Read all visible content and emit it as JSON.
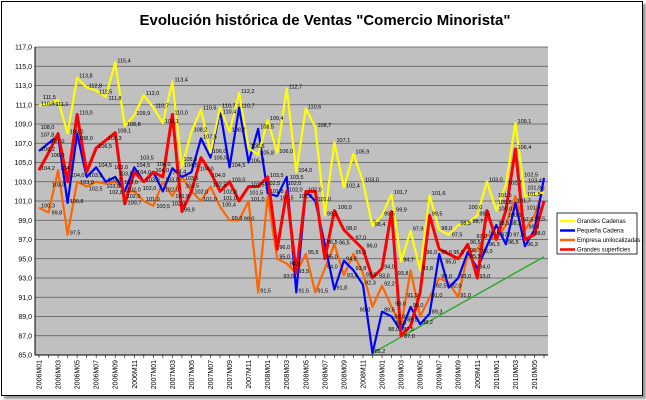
{
  "chart_data": {
    "type": "line",
    "title": "Evolución histórica de Ventas \"Comercio Minorista\"",
    "xlabel": "",
    "ylabel": "",
    "ylim": [
      85,
      117
    ],
    "ytick_step": 2,
    "grid": true,
    "legend_position": "right",
    "x": [
      "2006M01",
      "2006M02",
      "2006M03",
      "2006M04",
      "2006M05",
      "2006M06",
      "2006M07",
      "2006M08",
      "2006M09",
      "2006M10",
      "2006M11",
      "2006M12",
      "2007M01",
      "2007M02",
      "2007M03",
      "2007M04",
      "2007M05",
      "2007M06",
      "2007M07",
      "2007M08",
      "2007M09",
      "2007M10",
      "2007M11",
      "2007M12",
      "2008M01",
      "2008M02",
      "2008M03",
      "2008M04",
      "2008M05",
      "2008M06",
      "2008M07",
      "2008M08",
      "2008M09",
      "2008M10",
      "2008M11",
      "2008M12",
      "2009M01",
      "2009M02",
      "2009M03",
      "2009M04",
      "2009M05",
      "2009M06",
      "2009M07",
      "2009M08",
      "2009M09",
      "2009M10",
      "2009M11",
      "2009M12",
      "2010M01",
      "2010M02",
      "2010M03",
      "2010M04",
      "2010M05",
      "2010M06"
    ],
    "x_tick_labels": [
      "2006M01",
      "2006M03",
      "2006M05",
      "2006M07",
      "2006M09",
      "2006M11",
      "2007M01",
      "2007M03",
      "2007M05",
      "2007M07",
      "2007M09",
      "2007M11",
      "2008M01",
      "2008M03",
      "2008M05",
      "2008M07",
      "2008M09",
      "2008M11",
      "2009M01",
      "2009M03",
      "2009M05",
      "2009M07",
      "2009M09",
      "2009M11",
      "2010M01",
      "2010M03",
      "2010M05"
    ],
    "y_tick_labels": [
      "85,0",
      "87,0",
      "89,0",
      "91,0",
      "93,0",
      "95,0",
      "97,0",
      "99,0",
      "101,0",
      "103,0",
      "105,0",
      "107,0",
      "109,0",
      "111,0",
      "113,0",
      "115,0",
      "117,0"
    ],
    "series": [
      {
        "name": "Grandes Cadenas",
        "color": "#ffff00",
        "values": [
          110.9,
          111.1,
          111.5,
          108.0,
          113.8,
          112.8,
          112.5,
          111.8,
          115.4,
          108.8,
          109.9,
          112.0,
          110.7,
          109.1,
          113.4,
          104.5,
          108.2,
          110.5,
          106.0,
          110.7,
          108.2,
          112.2,
          106.5,
          105.8,
          109.4,
          106.0,
          112.7,
          104.0,
          110.6,
          108.7,
          99.5,
          107.1,
          102.4,
          105.9,
          103.0,
          98.4,
          99.5,
          101.7,
          94.7,
          97.9,
          93.8,
          101.6,
          98.0,
          97.5,
          98.5,
          98.7,
          99.5,
          103.0,
          100.0,
          102.7,
          109.1,
          101.5,
          101.7,
          101.9
        ]
      },
      {
        "name": "Pequeña Cadena",
        "color": "#0000ff",
        "values": [
          106.2,
          107.0,
          107.8,
          100.8,
          108.0,
          103.5,
          104.5,
          103.0,
          103.5,
          102.0,
          104.5,
          103.0,
          104.0,
          102.0,
          104.4,
          103.5,
          104.0,
          107.5,
          105.5,
          110.4,
          104.5,
          110.7,
          105.0,
          108.5,
          101.8,
          101.5,
          103.5,
          91.5,
          102.0,
          101.0,
          96.5,
          91.8,
          94.8,
          93.8,
          92.3,
          85.2,
          89.5,
          89.0,
          87.5,
          90.0,
          88.2,
          89.3,
          95.5,
          92.0,
          93.0,
          95.7,
          94.0,
          96.3,
          98.5,
          96.5,
          100.8,
          96.3,
          98.0,
          103.4
        ]
      },
      {
        "name": "Empresa unilocalizadas",
        "color": "#ff6600",
        "values": [
          100.3,
          99.8,
          104.2,
          97.5,
          103.0,
          102.5,
          103.0,
          102.8,
          103.0,
          102.0,
          102.0,
          101.0,
          100.5,
          103.0,
          101.5,
          103.5,
          102.0,
          101.0,
          102.5,
          100.4,
          99.0,
          99.0,
          101.0,
          91.5,
          101.5,
          95.0,
          94.5,
          93.5,
          95.5,
          91.5,
          94.0,
          96.5,
          93.3,
          95.5,
          93.5,
          90.0,
          92.2,
          90.0,
          88.0,
          93.8,
          89.0,
          91.0,
          93.0,
          92.5,
          91.0,
          95.5,
          96.0,
          97.5,
          97.0,
          98.5,
          101.5,
          98.0,
          99.5,
          102.5
        ]
      },
      {
        "name": "Grandes superficies",
        "color": "#ff0000",
        "values": [
          104.2,
          106.0,
          108.0,
          103.0,
          110.0,
          104.0,
          106.5,
          107.3,
          108.1,
          100.7,
          104.0,
          103.0,
          104.0,
          103.5,
          110.0,
          99.9,
          102.0,
          105.5,
          104.0,
          102.0,
          103.0,
          101.0,
          102.5,
          102.5,
          103.5,
          96.0,
          102.0,
          93.5,
          102.0,
          102.0,
          95.0,
          100.0,
          98.0,
          97.0,
          96.0,
          93.0,
          94.0,
          99.9,
          87.0,
          88.0,
          91.5,
          99.5,
          96.0,
          95.5,
          95.0,
          96.5,
          93.0,
          100.0,
          97.0,
          100.0,
          106.4,
          97.0,
          97.5,
          101.0
        ]
      }
    ],
    "trendline": {
      "color": "#33aa33",
      "from_index": 35,
      "from_value": 85.2,
      "to_index": 53,
      "to_value": 95.2
    }
  }
}
